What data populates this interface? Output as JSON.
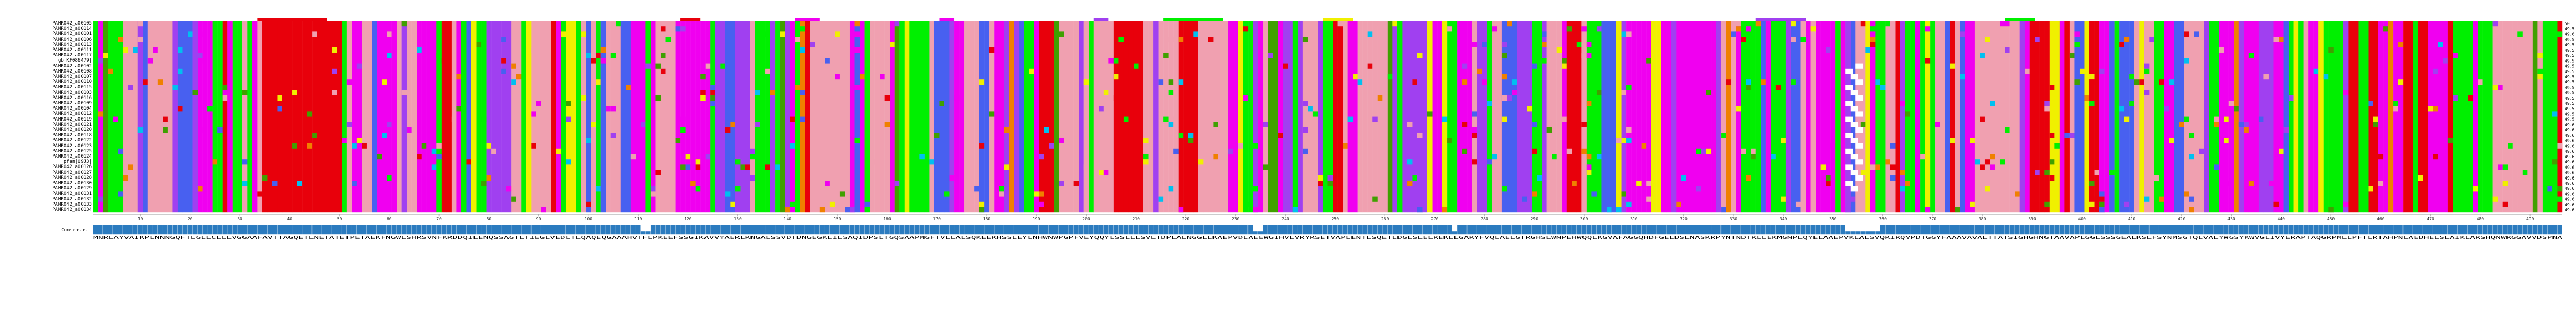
{
  "alignment": {
    "sequences": [
      {
        "name": "PAMR042_a00105",
        "end": "50"
      },
      {
        "name": "PAMR042_a00114",
        "end": "49.5"
      },
      {
        "name": "PAMR042_a00101",
        "end": "49.6"
      },
      {
        "name": "PAMR042_a00106",
        "end": "49.5"
      },
      {
        "name": "PAMR042_a00113",
        "end": "49.5"
      },
      {
        "name": "PAMR042_a00111",
        "end": "49.5"
      },
      {
        "name": "PAMR042_a00117",
        "end": "49.5"
      },
      {
        "name": "gb|KF086479|",
        "end": "49.5"
      },
      {
        "name": "PAMR042_a00102",
        "end": "49.5"
      },
      {
        "name": "PAMR042_a00108",
        "end": "49.5"
      },
      {
        "name": "PAMR042_a00107",
        "end": "49.5"
      },
      {
        "name": "PAMR042_a00110",
        "end": "49.5"
      },
      {
        "name": "PAMR042_a00115",
        "end": "49.5"
      },
      {
        "name": "PAMR042_a00103",
        "end": "49.5"
      },
      {
        "name": "PAMR042_a00116",
        "end": "49.5"
      },
      {
        "name": "PAMR042_a00109",
        "end": "49.5"
      },
      {
        "name": "PAMR042_a00104",
        "end": "49.5"
      },
      {
        "name": "PAMR042_a00112",
        "end": "49.5"
      },
      {
        "name": "PAMR042_a00119",
        "end": "49.5"
      },
      {
        "name": "PAMR042_a00121",
        "end": "49.6"
      },
      {
        "name": "PAMR042_a00120",
        "end": "49.6"
      },
      {
        "name": "PAMR042_a00118",
        "end": "49.6"
      },
      {
        "name": "PAMR042_a00122",
        "end": "49.6"
      },
      {
        "name": "PAMR042_a00123",
        "end": "49.6"
      },
      {
        "name": "PAMR042_a00125",
        "end": "49.6"
      },
      {
        "name": "PAMR042_a00124",
        "end": "49.6"
      },
      {
        "name": "pfam|Q9J3|",
        "end": "49.6"
      },
      {
        "name": "PAMR042_a00126",
        "end": "49.6"
      },
      {
        "name": "PAMR042_a00127",
        "end": "49.6"
      },
      {
        "name": "PAMR042_a00128",
        "end": "49.6"
      },
      {
        "name": "PAMR042_a00130",
        "end": "49.6"
      },
      {
        "name": "PAMR042_a00129",
        "end": "49.6"
      },
      {
        "name": "PAMR042_a00131",
        "end": "49.6"
      },
      {
        "name": "PAMR042_a00132",
        "end": "49.6"
      },
      {
        "name": "PAMR042_a00133",
        "end": "49.6"
      },
      {
        "name": "PAMR042_a00134",
        "end": "49.6"
      }
    ],
    "ruler_ticks": [
      "10",
      "20",
      "30",
      "40",
      "50",
      "60",
      "70",
      "80",
      "90",
      "100",
      "110",
      "120",
      "130",
      "140",
      "150",
      "160",
      "170",
      "180",
      "190",
      "200",
      "210",
      "220",
      "230",
      "240",
      "250",
      "260",
      "270",
      "280",
      "290",
      "300",
      "310",
      "320",
      "330",
      "340",
      "350",
      "360",
      "370",
      "380",
      "390",
      "400",
      "410",
      "420",
      "430",
      "440",
      "450",
      "460",
      "470",
      "480",
      "490"
    ],
    "consensus_label": "Consensus",
    "consensus_seq": "MNRLAYVAIKPLNNNGQFTLGLLCLLLVGGAAFAVTTAGQETLNETATETPETAEKFNGWLSHRSVNFKRDDQILENQSSAGTLTIEGLVEDLTLQAQEQGAAAHVTFLPKEEFSSGIKAVVYAERLRNGALSSVDTDNGEGKLILSAQIDPSLTGQSAAPMGFTVLLALSQKEEKHSSLEYLNHWNWPGPFVEYQQYLSSLLLSVLTDPLALNGGLLKAEPVDLAEEWGIHVLVRYRSETVAPLENTLSQETLDGLSLELREKLLGARYFVQLAELGTRGHSLWNPEHWQQLKGVAFAGGQHDFGELDSLNASRRPYNTNDTRLLEKMGNPLQYELAAEPVKLALSVQRIRQVPDTGGYFAAAVAVALTTATSIGHGHNGTAAVAPLGGLSSSGEALKSLFSYNMSGTQLVALYWGSYKWVGLIVYERAPTAQGRPMLLPFTLRTAHPNLAEDHELSLAIKLARSHQNWRGGAVVDSPNA",
    "colors": {
      "red": "#e8000b",
      "magenta": "#f000f0",
      "green": "#00f000",
      "pink": "#f0a0b0",
      "violet": "#a040f0",
      "blue": "#4860f0",
      "yellow": "#f0f000",
      "orange": "#f08000",
      "dark_green": "#40a000",
      "cyan": "#00c0f0",
      "consensus_bar": "#2b7bbf"
    }
  }
}
